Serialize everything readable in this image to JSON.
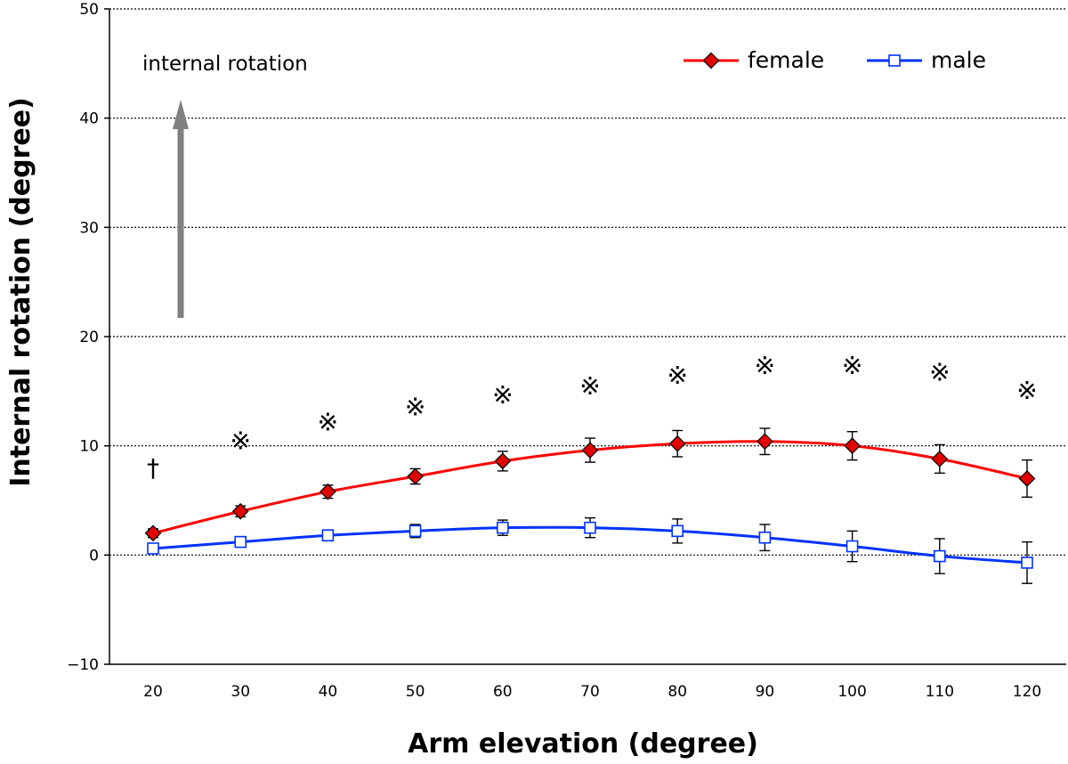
{
  "chart_data": {
    "type": "line",
    "title": "",
    "xlabel": "Arm elevation (degree)",
    "ylabel": "Internal rotation (degree)",
    "ylim": [
      -10,
      50
    ],
    "yticks": [
      -10,
      0,
      10,
      20,
      30,
      40,
      50
    ],
    "ytick_labels": [
      "−10",
      "0",
      "10",
      "20",
      "30",
      "40",
      "50"
    ],
    "grid": true,
    "legend_position": "top-right",
    "categories": [
      20,
      30,
      40,
      50,
      60,
      70,
      80,
      90,
      100,
      110,
      120
    ],
    "category_labels": [
      "20",
      "30",
      "40",
      "50",
      "60",
      "70",
      "80",
      "90",
      "100",
      "110",
      "120"
    ],
    "series": [
      {
        "name": "female",
        "marker": "diamond",
        "color": "#ff0000",
        "marker_fill": "#e00000",
        "values": [
          2.0,
          4.0,
          5.8,
          7.2,
          8.6,
          9.6,
          10.2,
          10.4,
          10.0,
          8.8,
          7.0
        ],
        "errors": [
          0.4,
          0.5,
          0.6,
          0.7,
          0.9,
          1.1,
          1.2,
          1.2,
          1.3,
          1.3,
          1.7
        ]
      },
      {
        "name": "male",
        "marker": "square-open",
        "color": "#0033ff",
        "marker_fill": "#ffffff",
        "values": [
          0.6,
          1.2,
          1.8,
          2.2,
          2.5,
          2.5,
          2.2,
          1.6,
          0.8,
          -0.1,
          -0.7
        ],
        "errors": [
          0.2,
          0.4,
          0.5,
          0.6,
          0.7,
          0.9,
          1.1,
          1.2,
          1.4,
          1.6,
          1.9
        ]
      }
    ],
    "annotations": [
      {
        "text": "internal rotation"
      }
    ],
    "significance": [
      {
        "x": 20,
        "y": 8,
        "symbol": "†"
      },
      {
        "x": 30,
        "y": 10.5,
        "symbol": "※"
      },
      {
        "x": 40,
        "y": 12.2,
        "symbol": "※"
      },
      {
        "x": 50,
        "y": 13.6,
        "symbol": "※"
      },
      {
        "x": 60,
        "y": 14.7,
        "symbol": "※"
      },
      {
        "x": 70,
        "y": 15.5,
        "symbol": "※"
      },
      {
        "x": 80,
        "y": 16.5,
        "symbol": "※"
      },
      {
        "x": 90,
        "y": 17.4,
        "symbol": "※"
      },
      {
        "x": 100,
        "y": 17.4,
        "symbol": "※"
      },
      {
        "x": 110,
        "y": 16.8,
        "symbol": "※"
      },
      {
        "x": 120,
        "y": 15.1,
        "symbol": "※"
      }
    ]
  }
}
